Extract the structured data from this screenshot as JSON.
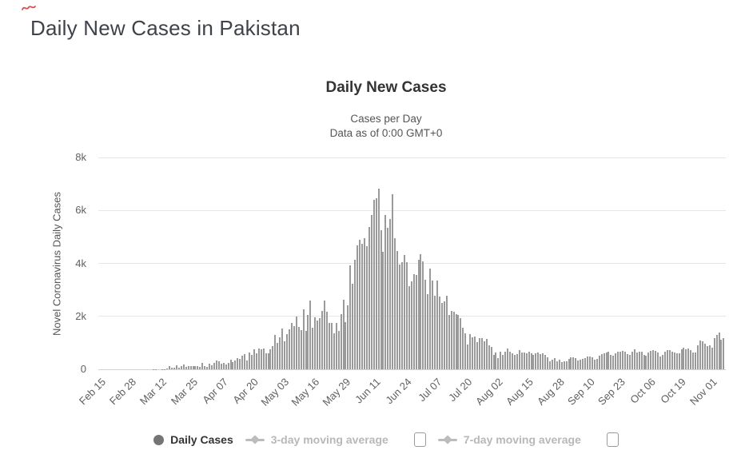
{
  "page": {
    "title": "Daily New Cases in Pakistan",
    "red_scribble_color": "#cc3333"
  },
  "chart": {
    "title": "Daily New Cases",
    "subtitle_line1": "Cases per Day",
    "subtitle_line2": "Data as of 0:00 GMT+0",
    "y_axis_title": "Novel Coronavirus Daily Cases"
  },
  "legend": {
    "items": [
      {
        "label": "Daily Cases",
        "marker": "circle-icon",
        "enabled": true,
        "has_checkbox": false
      },
      {
        "label": "3-day moving average",
        "marker": "line-diamond-icon",
        "enabled": false,
        "has_checkbox": true,
        "checkbox_checked": false
      },
      {
        "label": "7-day moving average",
        "marker": "line-diamond-icon",
        "enabled": false,
        "has_checkbox": true,
        "checkbox_checked": false
      }
    ]
  },
  "chart_data": {
    "type": "bar",
    "title": "Daily New Cases",
    "series_name": "Daily Cases",
    "start_label": "Feb 15",
    "end_label": "Nov 07",
    "ylim": [
      0,
      8000
    ],
    "grid": true,
    "legend_position": "bottom",
    "bar_color": "#9a9a9a",
    "grid_color": "#e6e6e6",
    "axis_label_color": "#606060",
    "daily_marker_color": "#757575",
    "ma_marker_color": "#bcbcbc",
    "yticks": [
      {
        "value": 0,
        "label": "0"
      },
      {
        "value": 2000,
        "label": "2k"
      },
      {
        "value": 4000,
        "label": "4k"
      },
      {
        "value": 6000,
        "label": "6k"
      },
      {
        "value": 8000,
        "label": "8k"
      }
    ],
    "xticks": [
      "Feb 15",
      "Feb 28",
      "Mar 12",
      "Mar 25",
      "Apr 07",
      "Apr 20",
      "May 03",
      "May 16",
      "May 29",
      "Jun 11",
      "Jun 24",
      "Jul 07",
      "Jul 20",
      "Aug 02",
      "Aug 15",
      "Aug 28",
      "Sep 10",
      "Sep 23",
      "Oct 06",
      "Oct 19",
      "Nov 01"
    ],
    "xtick_interval_days": 13,
    "values": [
      0,
      0,
      0,
      0,
      0,
      0,
      0,
      0,
      0,
      0,
      0,
      2,
      2,
      0,
      0,
      0,
      1,
      0,
      0,
      0,
      1,
      0,
      1,
      11,
      3,
      2,
      2,
      9,
      3,
      22,
      134,
      63,
      71,
      152,
      56,
      136,
      176,
      88,
      107,
      112,
      121,
      136,
      119,
      103,
      240,
      133,
      105,
      210,
      157,
      253,
      342,
      297,
      211,
      254,
      186,
      243,
      351,
      264,
      322,
      436,
      393,
      520,
      568,
      342,
      633,
      554,
      750,
      593,
      791,
      747,
      783,
      605,
      605,
      751,
      874,
      1297,
      985,
      1197,
      1530,
      1049,
      1315,
      1523,
      1764,
      1637,
      1991,
      1598,
      1476,
      2255,
      1452,
      2039,
      2603,
      1581,
      1974,
      1841,
      1932,
      2193,
      2603,
      2164,
      1743,
      1748,
      1356,
      1748,
      1446,
      2076,
      2636,
      1791,
      2429,
      3938,
      3229,
      4131,
      4688,
      4896,
      4734,
      4960,
      4646,
      5385,
      5834,
      6397,
      6472,
      6825,
      5248,
      4443,
      5839,
      5358,
      5667,
      6604,
      4951,
      4471,
      3946,
      4044,
      4321,
      4044,
      3138,
      3307,
      3590,
      3557,
      4133,
      4339,
      4087,
      3387,
      2845,
      3791,
      3344,
      2769,
      3359,
      2751,
      2521,
      2581,
      2769,
      2039,
      2198,
      2165,
      2085,
      2045,
      1918,
      1579,
      1347,
      936,
      1332,
      1209,
      1226,
      1013,
      1176,
      1171,
      1063,
      1133,
      898,
      852,
      539,
      628,
      432,
      661,
      554,
      674,
      782,
      659,
      590,
      539,
      574,
      724,
      637,
      645,
      591,
      670,
      594,
      555,
      617,
      628,
      569,
      592,
      533,
      439,
      300,
      365,
      425,
      312,
      362,
      273,
      292,
      300,
      388,
      453,
      443,
      428,
      344,
      356,
      398,
      423,
      490,
      472,
      450,
      375,
      407,
      527,
      584,
      609,
      640,
      660,
      545,
      522,
      591,
      676,
      658,
      696,
      657,
      562,
      542,
      658,
      747,
      638,
      678,
      653,
      540,
      514,
      625,
      684,
      736,
      683,
      622,
      489,
      533,
      661,
      715,
      736,
      675,
      625,
      591,
      605,
      750,
      823,
      761,
      797,
      715,
      623,
      625,
      908,
      1078,
      1044,
      981,
      878,
      902,
      808,
      1167,
      1302,
      1376,
      1115,
      1187
    ]
  }
}
